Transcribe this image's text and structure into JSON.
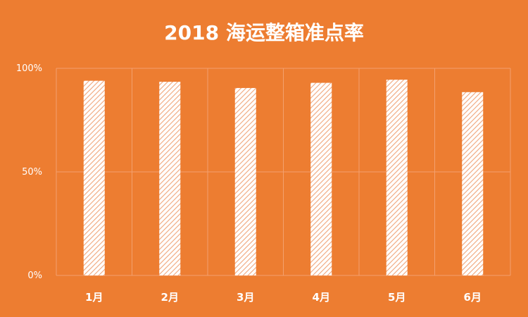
{
  "chart_data": {
    "type": "bar",
    "title": "2018  海运整箱准点率",
    "categories": [
      "1月",
      "2月",
      "3月",
      "4月",
      "5月",
      "6月"
    ],
    "values": [
      94,
      93.5,
      90.5,
      93,
      94.5,
      88.5
    ],
    "ylim": [
      0,
      100
    ],
    "yticks": [
      "0%",
      "50%",
      "100%"
    ],
    "grid": true,
    "legend": "none",
    "colors": {
      "background": "#ED7D31",
      "bar_fill": "#FFFFFF",
      "bar_hatch": "#F0A57A",
      "grid": "#F3A06E",
      "text": "#FFFFFF"
    }
  }
}
